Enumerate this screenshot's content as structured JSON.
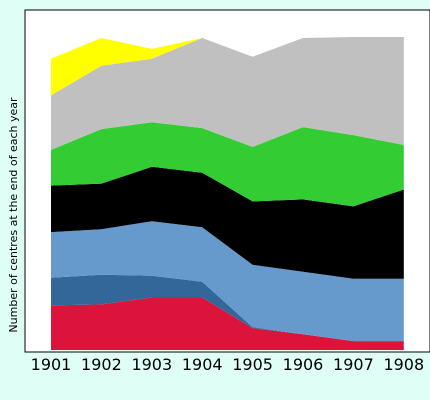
{
  "colors": {
    "page_background": "#dffff6",
    "plot_background": "#ffffff",
    "frame": "#000000"
  },
  "chart_data": {
    "type": "area",
    "stacked": true,
    "title": "",
    "xlabel": "",
    "ylabel": "Number of centres at the end of each year",
    "categories": [
      "1901",
      "1902",
      "1903",
      "1904",
      "1905",
      "1906",
      "1907",
      "1908"
    ],
    "y_axis_ticks_shown": false,
    "grid": false,
    "legend": "none",
    "layers": [
      {
        "color": "#dc143c",
        "values": [
          45,
          46,
          53,
          53,
          22,
          16,
          9,
          9
        ]
      },
      {
        "color": "#336699",
        "values": [
          28,
          30,
          22,
          16,
          1,
          0,
          0,
          0
        ]
      },
      {
        "color": "#6699cc",
        "values": [
          46,
          46,
          55,
          55,
          63,
          63,
          63,
          63
        ]
      },
      {
        "color": "#000000",
        "values": [
          47,
          46,
          55,
          55,
          64,
          73,
          73,
          90
        ]
      },
      {
        "color": "#33cc33",
        "values": [
          36,
          55,
          45,
          45,
          55,
          73,
          72,
          45
        ]
      },
      {
        "color": "#c0c0c0",
        "values": [
          55,
          64,
          64,
          91,
          91,
          90,
          99,
          109
        ]
      },
      {
        "color": "#ffff00",
        "values": [
          37,
          28,
          10,
          0,
          0,
          0,
          0,
          0
        ]
      }
    ]
  }
}
